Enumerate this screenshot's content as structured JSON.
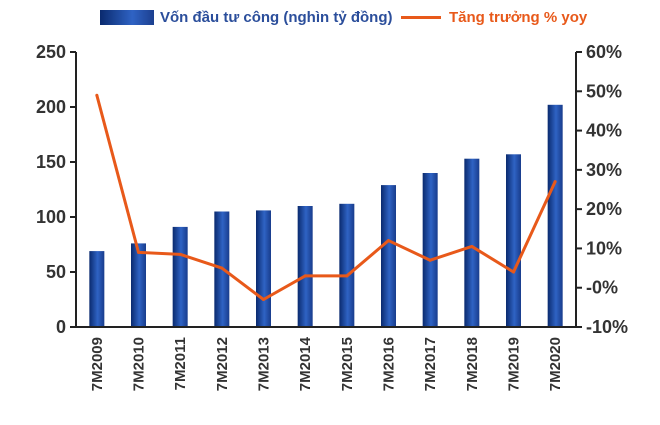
{
  "chart_data": {
    "type": "bar",
    "categories": [
      "7M2009",
      "7M2010",
      "7M2011",
      "7M2012",
      "7M2013",
      "7M2014",
      "7M2015",
      "7M2016",
      "7M2017",
      "7M2018",
      "7M2019",
      "7M2020"
    ],
    "series": [
      {
        "name": "Vốn đầu tư công (nghìn tỷ đồng)",
        "type": "bar",
        "axis": "left",
        "color": "#1f4a9e",
        "values": [
          69,
          76,
          91,
          105,
          106,
          110,
          112,
          129,
          140,
          153,
          157,
          202
        ]
      },
      {
        "name": "Tăng trưởng % yoy",
        "type": "line",
        "axis": "right",
        "color": "#e8591a",
        "values": [
          49,
          9,
          8.5,
          5,
          -3,
          3,
          3,
          12,
          7,
          10.5,
          4,
          27
        ]
      }
    ],
    "ylim": [
      0,
      250
    ],
    "y_ticks": [
      "0",
      "50",
      "100",
      "150",
      "200",
      "250"
    ],
    "y2lim": [
      -10,
      60
    ],
    "y2_ticks": [
      "-10%",
      "-0%",
      "10%",
      "20%",
      "30%",
      "40%",
      "50%",
      "60%"
    ],
    "legend_position": "top",
    "grid": false
  }
}
